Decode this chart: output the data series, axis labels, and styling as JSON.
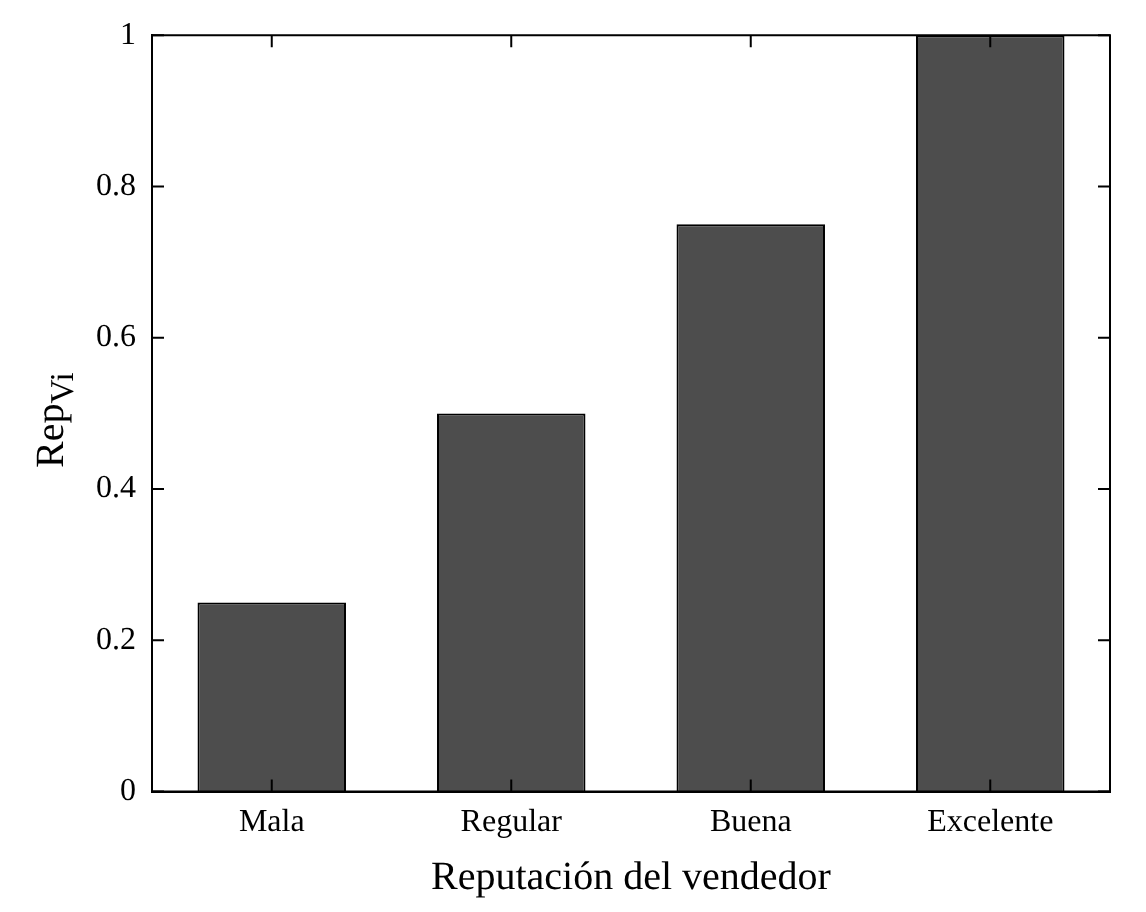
{
  "chart_data": {
    "type": "bar",
    "xlabel": "Reputación del vendedor",
    "ylabel": "Rep$_{Vi}$",
    "categories": [
      "Mala",
      "Regular",
      "Buena",
      "Excelente"
    ],
    "values": [
      0.25,
      0.5,
      0.75,
      1
    ],
    "color": "#4d4d4d",
    "ylim": [
      0,
      1
    ],
    "yticks": [
      0,
      0.2,
      0.4,
      0.6,
      0.8,
      1
    ],
    "grid": false,
    "legend": false
  }
}
